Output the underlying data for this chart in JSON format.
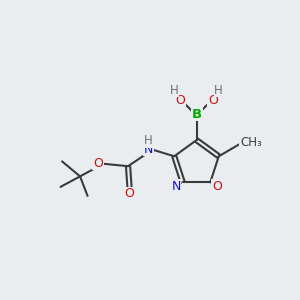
{
  "background_color": "#eaedf0",
  "bond_color": "#3a3a3a",
  "atom_colors": {
    "B": "#00aa00",
    "N": "#1010cc",
    "O": "#cc1010",
    "C": "#3a3a3a",
    "H": "#707070"
  },
  "figsize": [
    3.0,
    3.0
  ],
  "dpi": 100
}
